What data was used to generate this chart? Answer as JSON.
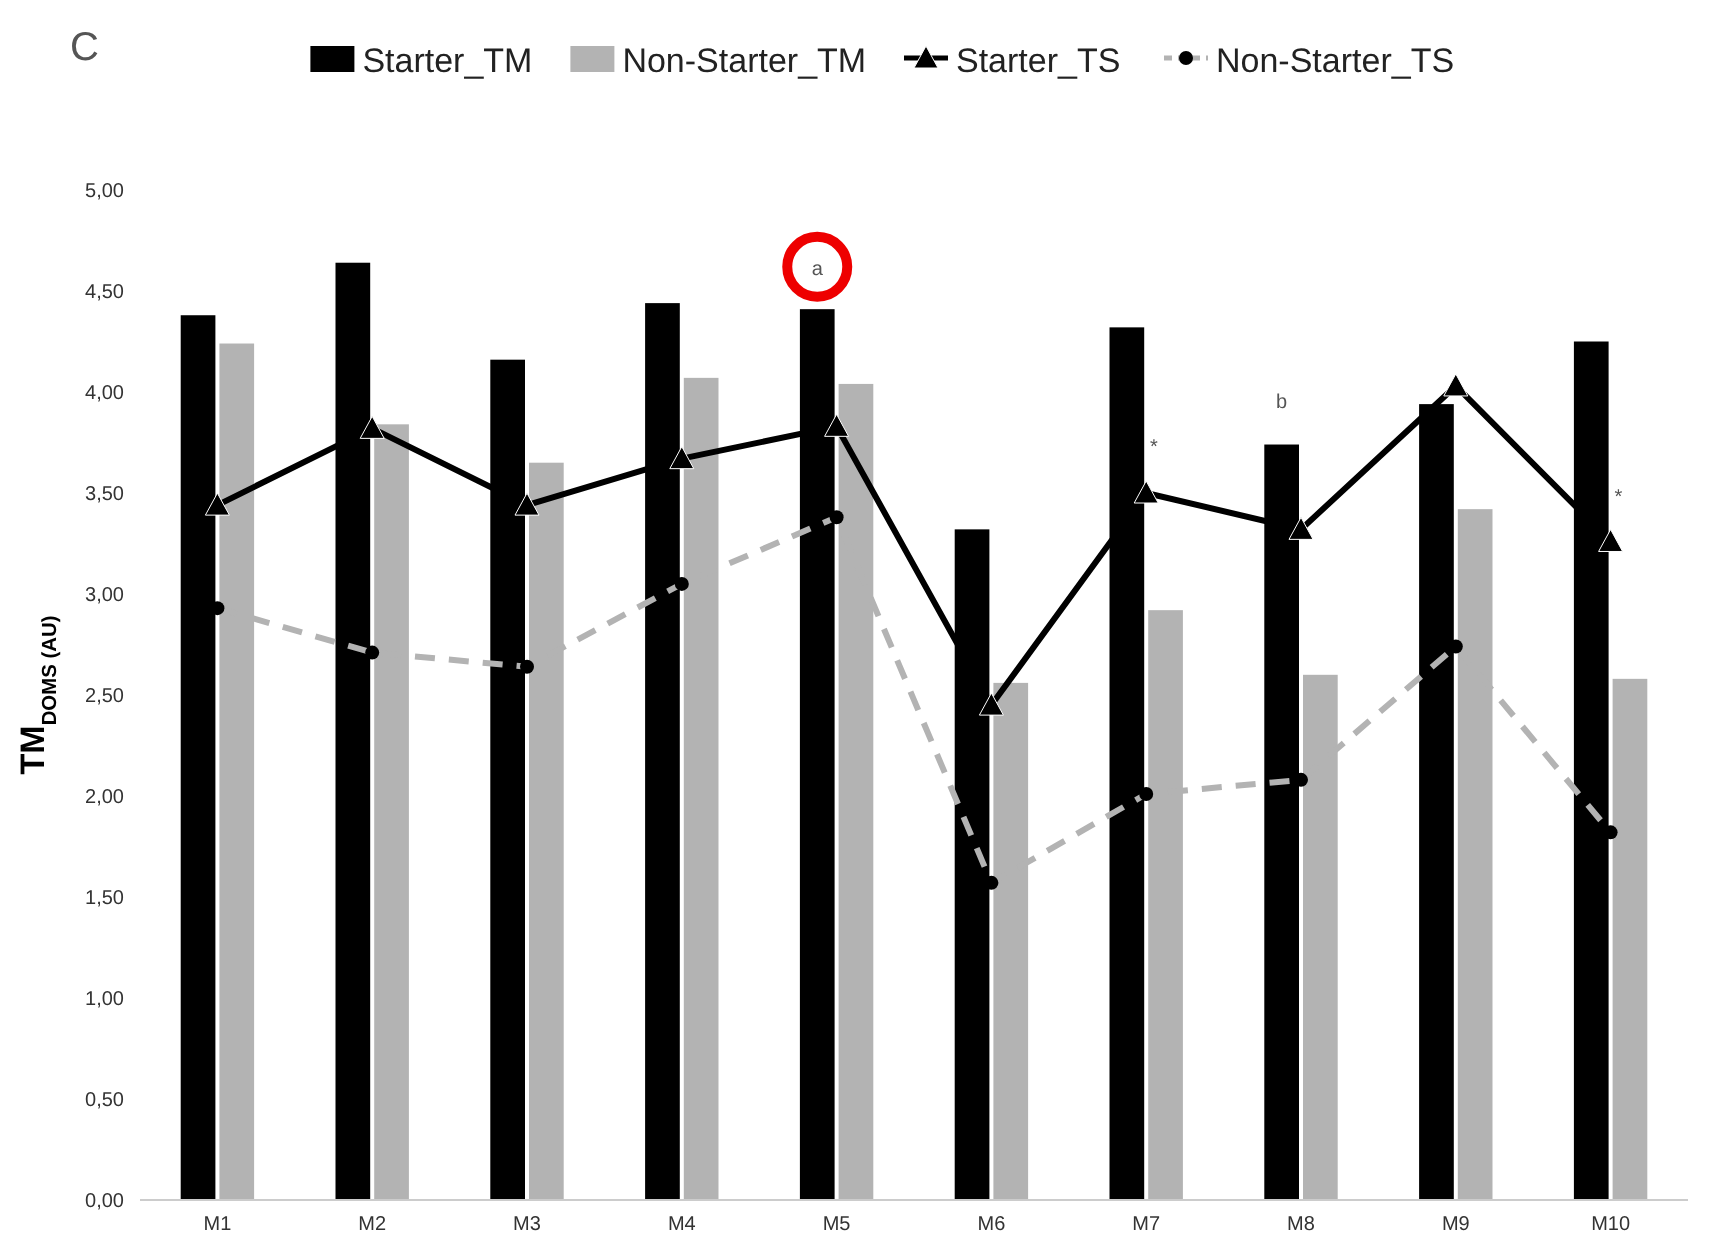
{
  "chart_data": {
    "type": "bar",
    "ylabel": "TM$_{DOMS (AU)}$",
    "categories": [
      "M1",
      "M2",
      "M3",
      "M4",
      "M5",
      "M6",
      "M7",
      "M8",
      "M9",
      "M10"
    ],
    "series": [
      {
        "name": "Starter_TM",
        "color": "#000000",
        "values": [
          4.38,
          4.64,
          4.16,
          4.44,
          4.41,
          3.32,
          4.32,
          3.74,
          3.94,
          4.25
        ]
      },
      {
        "name": "Non-Starter_TM",
        "color": "#b3b3b3",
        "values": [
          4.24,
          3.84,
          3.65,
          4.07,
          4.04,
          2.56,
          2.92,
          2.6,
          3.42,
          2.58
        ]
      },
      {
        "name": "Starter_TS",
        "type": "line",
        "color": "#000000",
        "marker": "triangle",
        "line_style": "solid",
        "values": [
          3.44,
          3.82,
          3.44,
          3.67,
          3.83,
          2.45,
          3.5,
          3.32,
          4.03,
          3.26
        ]
      },
      {
        "name": "Non-Starter_TS",
        "type": "line",
        "color": "#b3b3b3",
        "marker": "circle",
        "line_style": "dashed",
        "values": [
          2.93,
          2.71,
          2.64,
          3.05,
          3.38,
          1.57,
          2.01,
          2.08,
          2.74,
          1.82
        ]
      }
    ],
    "ylim": [
      0,
      5
    ],
    "yticks": [
      {
        "value": 0,
        "label": "0,00"
      },
      {
        "value": 0.5,
        "label": "0,50"
      },
      {
        "value": 1,
        "label": "1,00"
      },
      {
        "value": 1.5,
        "label": "1,50"
      },
      {
        "value": 2,
        "label": "2,00"
      },
      {
        "value": 2.5,
        "label": "2,50"
      },
      {
        "value": 3,
        "label": "3,00"
      },
      {
        "value": 3.5,
        "label": "3,50"
      },
      {
        "value": 4,
        "label": "4,00"
      },
      {
        "value": 4.5,
        "label": "4,50"
      },
      {
        "value": 5,
        "label": "5,00"
      }
    ],
    "grid": false,
    "legend": "top",
    "annotations": [
      "C",
      "a",
      "b",
      "*",
      "*"
    ]
  }
}
